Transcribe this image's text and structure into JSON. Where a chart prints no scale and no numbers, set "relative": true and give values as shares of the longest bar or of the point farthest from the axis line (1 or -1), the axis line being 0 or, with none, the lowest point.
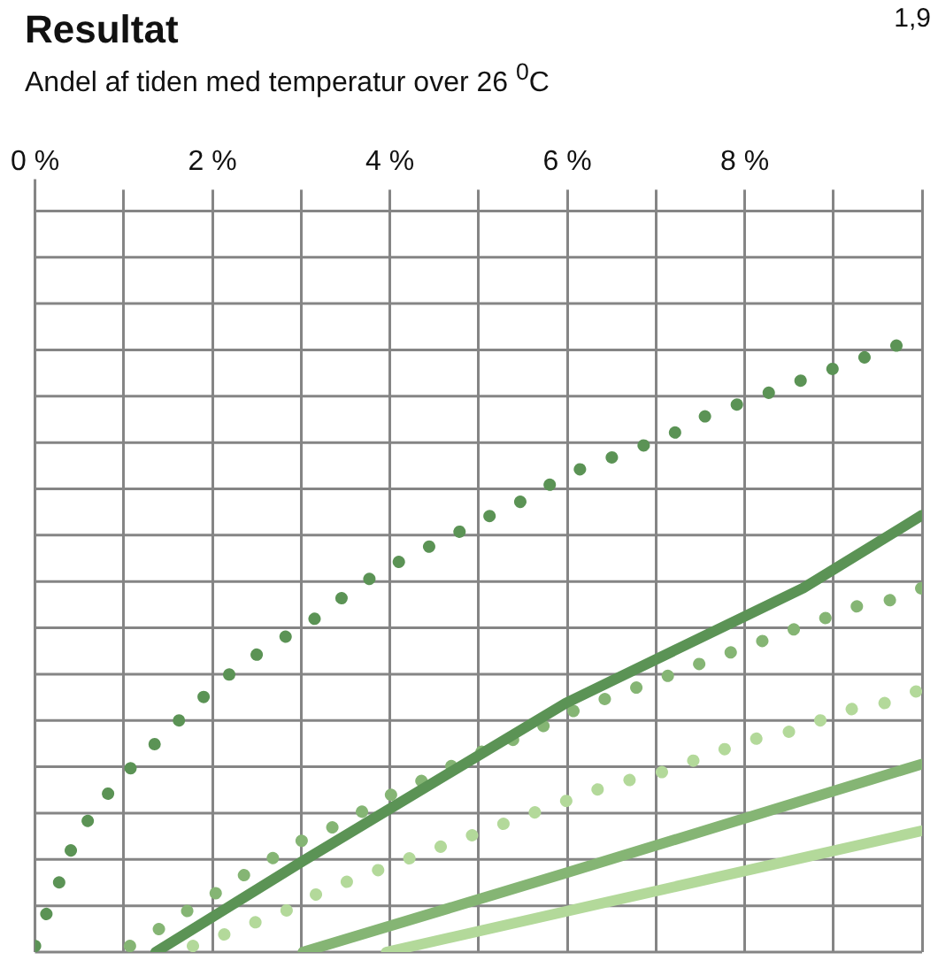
{
  "chart_data": {
    "type": "line",
    "title": "Resultat",
    "subtitle": "Andel af tiden med temperatur over 26 $^{0}$C",
    "annotations": [
      "1,9"
    ],
    "relative": true,
    "grid": true,
    "marker": "none",
    "tick_labels": "x",
    "xlim": [
      0,
      10
    ],
    "xticks": [
      {
        "value": 0,
        "label": "0 %"
      },
      {
        "value": 1,
        "label": null
      },
      {
        "value": 2,
        "label": "2 %"
      },
      {
        "value": 3,
        "label": null
      },
      {
        "value": 4,
        "label": "4 %"
      },
      {
        "value": 5,
        "label": null
      },
      {
        "value": 6,
        "label": "6 %"
      },
      {
        "value": 7,
        "label": null
      },
      {
        "value": 8,
        "label": "8 %"
      },
      {
        "value": 9,
        "label": null
      },
      {
        "value": 10,
        "label": null
      }
    ],
    "series": [
      {
        "color": "#5b9355",
        "line_style": "dotted",
        "x": [
          0,
          0.12,
          0.26,
          0.41,
          0.61,
          0.87,
          1.12,
          1.4,
          1.68,
          1.97,
          2.29,
          2.6,
          2.94,
          3.27,
          3.59,
          3.95,
          4.3,
          4.65,
          4.97,
          5.33,
          5.68,
          6.04,
          6.41,
          6.77,
          7.14,
          7.5,
          7.87,
          8.24,
          8.6,
          8.97,
          9.35,
          9.72
        ],
        "values": [
          0.01,
          0.06,
          0.11,
          0.17,
          0.22,
          0.27,
          0.31,
          0.35,
          0.39,
          0.43,
          0.47,
          0.5,
          0.53,
          0.56,
          0.6,
          0.63,
          0.66,
          0.68,
          0.71,
          0.73,
          0.76,
          0.79,
          0.81,
          0.83,
          0.85,
          0.88,
          0.9,
          0.92,
          0.94,
          0.96,
          0.98,
          1
        ]
      },
      {
        "color": "#5b9355",
        "line_style": "solid",
        "x": [
          1.36,
          3.02,
          5.98,
          8.66,
          10
        ],
        "values": [
          0,
          0.15,
          0.41,
          0.6,
          0.72
        ]
      },
      {
        "color": "#85b574",
        "line_style": "dotted",
        "x": [
          1.07,
          1.42,
          1.74,
          2.07,
          2.39,
          2.74,
          3.08,
          3.43,
          3.79,
          4.14,
          4.5,
          4.85,
          5.21,
          5.58,
          5.94,
          6.29,
          6.67,
          7.04,
          7.4,
          7.77,
          8.15,
          8.52,
          8.9,
          9.27,
          9.64,
          10
        ],
        "values": [
          0.01,
          0.04,
          0.07,
          0.1,
          0.13,
          0.16,
          0.19,
          0.21,
          0.24,
          0.27,
          0.29,
          0.32,
          0.34,
          0.36,
          0.39,
          0.41,
          0.43,
          0.45,
          0.47,
          0.49,
          0.51,
          0.53,
          0.55,
          0.57,
          0.58,
          0.6
        ]
      },
      {
        "color": "#85b574",
        "line_style": "solid",
        "x": [
          3.02,
          5.98,
          10
        ],
        "values": [
          0,
          0.13,
          0.31
        ]
      },
      {
        "color": "#b3d99a",
        "line_style": "dotted",
        "x": [
          1.78,
          2.15,
          2.5,
          2.86,
          3.23,
          3.59,
          3.96,
          4.32,
          4.69,
          5.07,
          5.44,
          5.82,
          6.19,
          6.57,
          6.94,
          7.32,
          7.69,
          8.07,
          8.44,
          8.82,
          9.19,
          9.57,
          9.94
        ],
        "values": [
          0.01,
          0.03,
          0.05,
          0.07,
          0.1,
          0.12,
          0.14,
          0.16,
          0.18,
          0.2,
          0.22,
          0.24,
          0.26,
          0.28,
          0.29,
          0.31,
          0.33,
          0.35,
          0.36,
          0.38,
          0.4,
          0.41,
          0.43
        ]
      },
      {
        "color": "#b3d99a",
        "line_style": "solid",
        "x": [
          3.96,
          10
        ],
        "values": [
          0,
          0.2
        ]
      }
    ]
  }
}
